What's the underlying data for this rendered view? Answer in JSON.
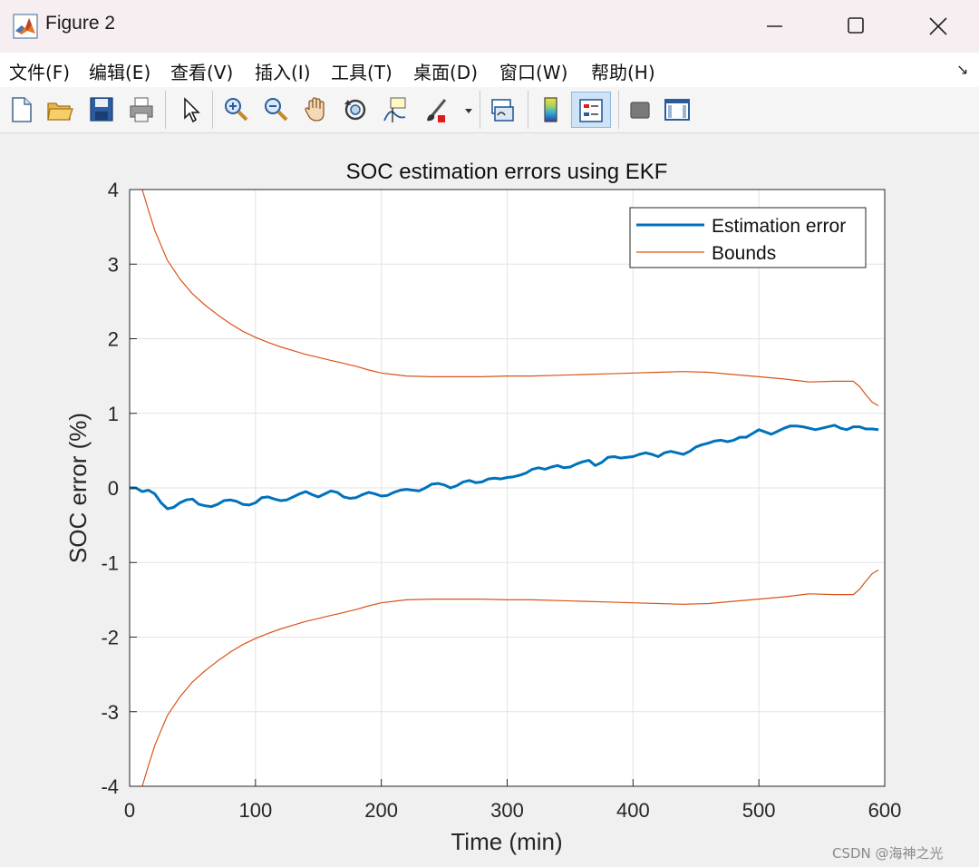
{
  "window": {
    "title": "Figure 2",
    "icon": "matlab-logo-icon",
    "controls": [
      "minimize-icon",
      "maximize-icon",
      "close-icon"
    ]
  },
  "menu": {
    "items": [
      "文件(F)",
      "编辑(E)",
      "查看(V)",
      "插入(I)",
      "工具(T)",
      "桌面(D)",
      "窗口(W)",
      "帮助(H)"
    ],
    "overflow": "↘"
  },
  "toolbar": {
    "buttons": [
      "new-figure-icon",
      "open-file-icon",
      "save-icon",
      "print-icon",
      "edit-plot-arrow-icon",
      "zoom-in-icon",
      "zoom-out-icon",
      "pan-hand-icon",
      "rotate-3d-icon",
      "data-cursor-icon",
      "brush-icon",
      "link-plot-icon",
      "colorbar-icon",
      "legend-icon",
      "hide-plot-tools-icon",
      "show-plot-tools-icon"
    ],
    "active": "legend-icon"
  },
  "chart_data": {
    "type": "line",
    "title": "SOC estimation errors using EKF",
    "xlabel": "Time (min)",
    "ylabel": "SOC error (%)",
    "xlim": [
      0,
      600
    ],
    "ylim": [
      -4,
      4
    ],
    "xticks": [
      "0",
      "100",
      "200",
      "300",
      "400",
      "500",
      "600"
    ],
    "yticks": [
      "4",
      "3",
      "2",
      "1",
      "0",
      "-1",
      "-2",
      "-3",
      "-4"
    ],
    "grid": true,
    "legend_position": "top-right",
    "series": [
      {
        "name": "Estimation error",
        "color": "#0072bd",
        "x": [
          0,
          5,
          10,
          15,
          20,
          25,
          30,
          35,
          40,
          45,
          50,
          55,
          60,
          65,
          70,
          75,
          80,
          85,
          90,
          95,
          100,
          105,
          110,
          115,
          120,
          125,
          130,
          135,
          140,
          145,
          150,
          155,
          160,
          165,
          170,
          175,
          180,
          185,
          190,
          195,
          200,
          205,
          210,
          215,
          220,
          225,
          230,
          235,
          240,
          245,
          250,
          255,
          260,
          265,
          270,
          275,
          280,
          285,
          290,
          295,
          300,
          305,
          310,
          315,
          320,
          325,
          330,
          335,
          340,
          345,
          350,
          355,
          360,
          365,
          370,
          375,
          380,
          385,
          390,
          395,
          400,
          405,
          410,
          415,
          420,
          425,
          430,
          435,
          440,
          445,
          450,
          455,
          460,
          465,
          470,
          475,
          480,
          485,
          490,
          495,
          500,
          505,
          510,
          515,
          520,
          525,
          530,
          535,
          540,
          545,
          550,
          555,
          560,
          565,
          570,
          575,
          580,
          585,
          590,
          595
        ],
        "y": [
          0.0,
          0.0,
          -0.05,
          -0.03,
          -0.08,
          -0.2,
          -0.28,
          -0.26,
          -0.2,
          -0.16,
          -0.15,
          -0.22,
          -0.24,
          -0.25,
          -0.22,
          -0.17,
          -0.16,
          -0.18,
          -0.22,
          -0.23,
          -0.2,
          -0.13,
          -0.12,
          -0.15,
          -0.17,
          -0.16,
          -0.12,
          -0.08,
          -0.05,
          -0.09,
          -0.12,
          -0.08,
          -0.04,
          -0.06,
          -0.12,
          -0.14,
          -0.13,
          -0.09,
          -0.06,
          -0.08,
          -0.11,
          -0.1,
          -0.06,
          -0.03,
          -0.02,
          -0.03,
          -0.04,
          0.0,
          0.05,
          0.06,
          0.04,
          0.0,
          0.03,
          0.08,
          0.1,
          0.07,
          0.08,
          0.12,
          0.13,
          0.12,
          0.14,
          0.15,
          0.17,
          0.2,
          0.25,
          0.27,
          0.25,
          0.28,
          0.3,
          0.27,
          0.28,
          0.32,
          0.35,
          0.37,
          0.3,
          0.34,
          0.41,
          0.42,
          0.4,
          0.41,
          0.42,
          0.45,
          0.47,
          0.45,
          0.42,
          0.47,
          0.49,
          0.47,
          0.45,
          0.49,
          0.55,
          0.58,
          0.6,
          0.63,
          0.64,
          0.62,
          0.64,
          0.68,
          0.68,
          0.73,
          0.78,
          0.75,
          0.72,
          0.76,
          0.8,
          0.83,
          0.83,
          0.82,
          0.8,
          0.78,
          0.8,
          0.82,
          0.84,
          0.8,
          0.78,
          0.82,
          0.82,
          0.79,
          0.79,
          0.78
        ]
      },
      {
        "name": "Bounds",
        "color": "#d95319",
        "x": [
          10,
          15,
          20,
          25,
          30,
          40,
          50,
          60,
          70,
          80,
          90,
          100,
          110,
          120,
          130,
          140,
          150,
          160,
          170,
          180,
          190,
          200,
          210,
          220,
          240,
          260,
          280,
          300,
          320,
          340,
          360,
          380,
          400,
          420,
          440,
          460,
          480,
          500,
          520,
          540,
          560,
          575,
          580,
          585,
          590,
          595
        ],
        "y": [
          4.0,
          3.72,
          3.45,
          3.25,
          3.05,
          2.8,
          2.6,
          2.45,
          2.32,
          2.2,
          2.1,
          2.02,
          1.95,
          1.89,
          1.84,
          1.79,
          1.75,
          1.71,
          1.67,
          1.63,
          1.58,
          1.54,
          1.52,
          1.5,
          1.49,
          1.49,
          1.49,
          1.5,
          1.5,
          1.51,
          1.52,
          1.53,
          1.54,
          1.55,
          1.56,
          1.55,
          1.52,
          1.49,
          1.46,
          1.42,
          1.43,
          1.43,
          1.36,
          1.25,
          1.15,
          1.1
        ]
      }
    ]
  },
  "watermark": "CSDN @海神之光"
}
